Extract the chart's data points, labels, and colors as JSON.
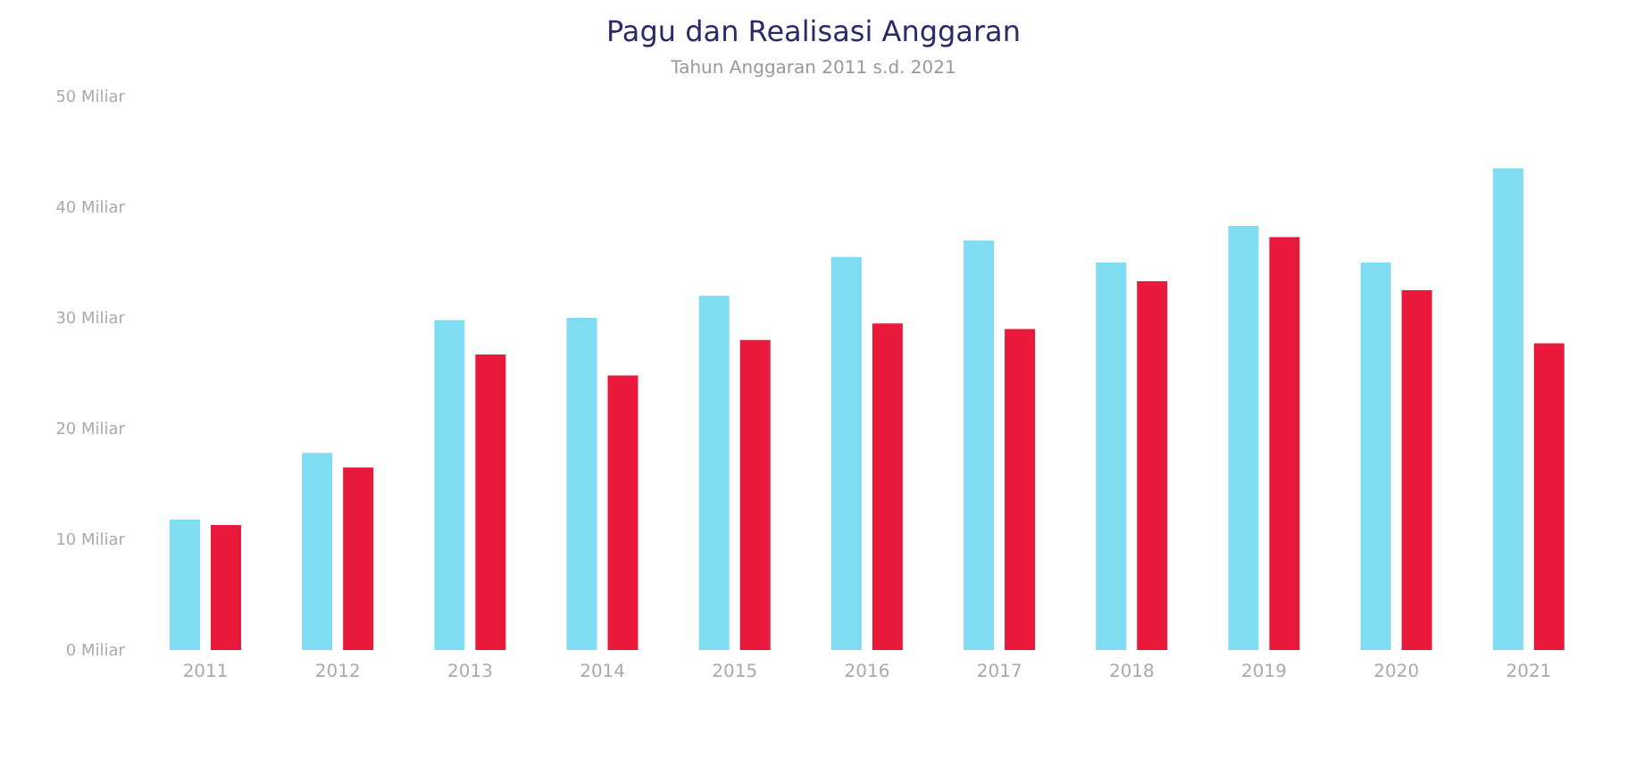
{
  "chart_data": {
    "type": "bar",
    "title": "Pagu dan Realisasi Anggaran",
    "subtitle": "Tahun Anggaran 2011 s.d. 2021",
    "categories": [
      "2011",
      "2012",
      "2013",
      "2014",
      "2015",
      "2016",
      "2017",
      "2018",
      "2019",
      "2020",
      "2021"
    ],
    "series": [
      {
        "color": "#80dcf0",
        "values": [
          11.8,
          17.8,
          29.8,
          30,
          32,
          35.5,
          37,
          35,
          38.3,
          35,
          43.5
        ]
      },
      {
        "color": "#e8193a",
        "values": [
          11.3,
          16.5,
          26.7,
          24.8,
          28,
          29.5,
          29,
          33.3,
          37.3,
          32.5,
          27.7
        ]
      }
    ],
    "ylim": [
      0,
      50
    ],
    "yticks": [
      {
        "value": 0,
        "label": "0 Miliar"
      },
      {
        "value": 10,
        "label": "10 Miliar"
      },
      {
        "value": 20,
        "label": "20 Miliar"
      },
      {
        "value": 30,
        "label": "30 Miliar"
      },
      {
        "value": 40,
        "label": "40 Miliar"
      },
      {
        "value": 50,
        "label": "50 Miliar"
      }
    ],
    "grid": false,
    "legend": false
  }
}
